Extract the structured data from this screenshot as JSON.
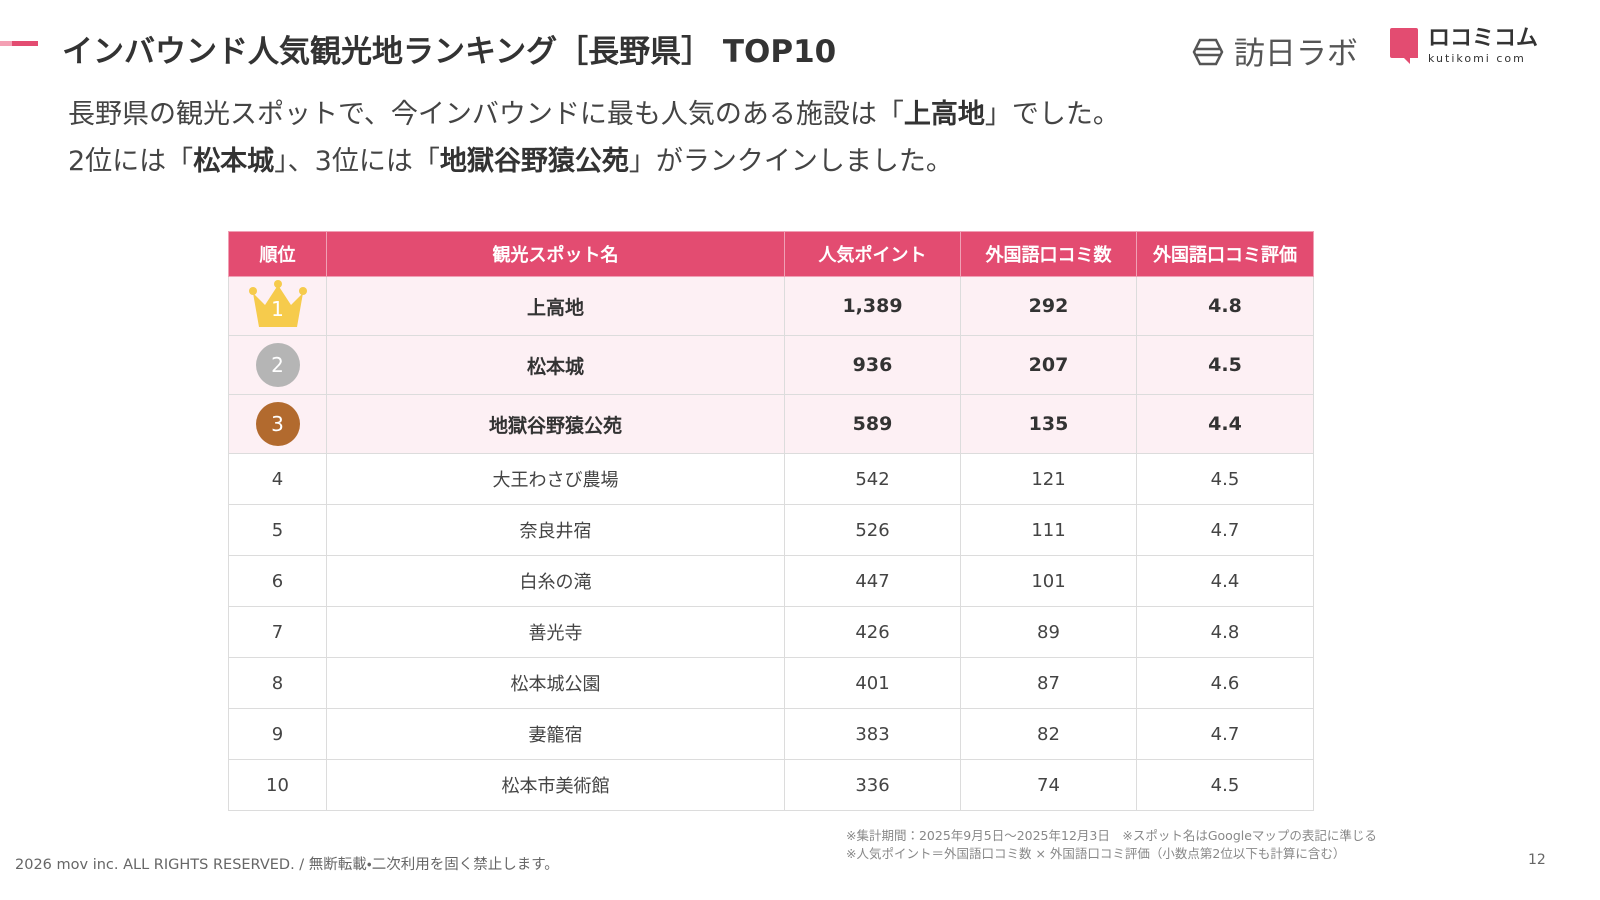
{
  "header": {
    "title": "インバウンド人気観光地ランキング［長野県］ TOP10",
    "logo_left": "訪日ラボ",
    "logo_right": "ロコミコム",
    "logo_right_sub": "kutikomi com"
  },
  "intro": [
    [
      "長野県の観光スポットで、今インバウンドに最も人気のある施設は「",
      "上高地",
      "」でした。"
    ],
    [
      "2位には「",
      "松本城",
      "」、3位には「",
      "地獄谷野猿公苑",
      "」がランクインしました。"
    ]
  ],
  "table": {
    "columns": [
      "順位",
      "観光スポット名",
      "人気ポイント",
      "外国語口コミ数",
      "外国語口コミ評価"
    ],
    "rows": [
      [
        "1",
        "上高地",
        "1,389",
        "292",
        "4.8"
      ],
      [
        "2",
        "松本城",
        "936",
        "207",
        "4.5"
      ],
      [
        "3",
        "地獄谷野猿公苑",
        "589",
        "135",
        "4.4"
      ],
      [
        "4",
        "大王わさび農場",
        "542",
        "121",
        "4.5"
      ],
      [
        "5",
        "奈良井宿",
        "526",
        "111",
        "4.7"
      ],
      [
        "6",
        "白糸の滝",
        "447",
        "101",
        "4.4"
      ],
      [
        "7",
        "善光寺",
        "426",
        "89",
        "4.8"
      ],
      [
        "8",
        "松本城公園",
        "401",
        "87",
        "4.6"
      ],
      [
        "9",
        "妻籠宿",
        "383",
        "82",
        "4.7"
      ],
      [
        "10",
        "松本市美術館",
        "336",
        "74",
        "4.5"
      ]
    ]
  },
  "notes": [
    "※集計期間：2025年9月5日〜2025年12月3日　※スポット名はGoogleマップの表記に準じる",
    "※人気ポイント＝外国語口コミ数 × 外国語口コミ評価（小数点第2位以下も計算に含む）"
  ],
  "footer": {
    "copyright": "2026 mov inc. ALL RIGHTS RESERVED. / 無断転載・二次利用を固く禁止します。",
    "page": "12"
  }
}
